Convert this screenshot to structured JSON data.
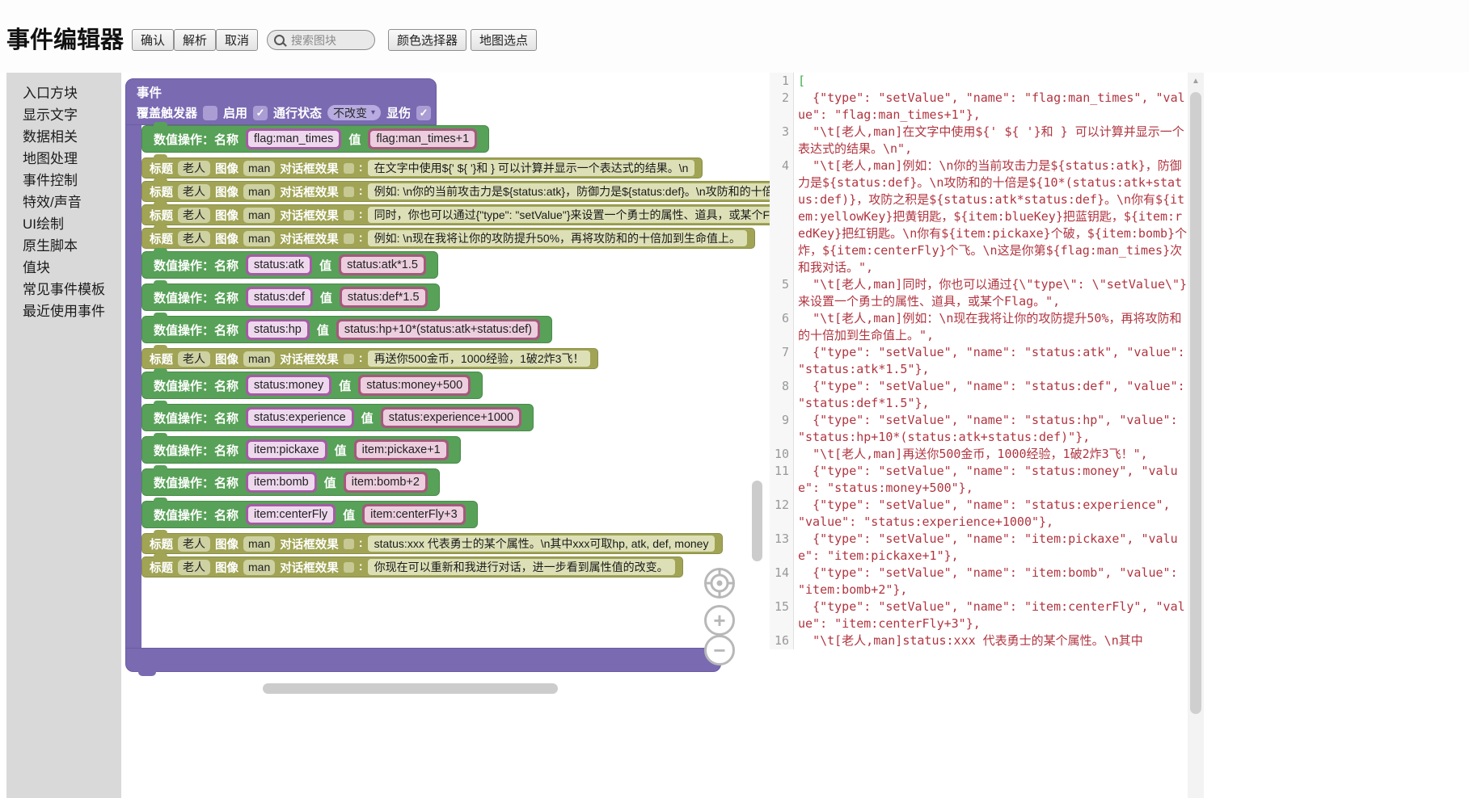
{
  "header": {
    "title": "事件编辑器",
    "confirm_label": "确认",
    "parse_label": "解析",
    "cancel_label": "取消",
    "search_placeholder": "搜索图块",
    "color_picker_label": "颜色选择器",
    "map_pick_label": "地图选点"
  },
  "sidebar": {
    "items": [
      "入口方块",
      "显示文字",
      "数据相关",
      "地图处理",
      "事件控制",
      "特效/声音",
      "UI绘制",
      "原生脚本",
      "值块",
      "常见事件模板",
      "最近使用事件"
    ]
  },
  "icons": {
    "check": "✓",
    "caret_down": "▾",
    "plus": "+",
    "minus": "−",
    "up_arrow": "▲"
  },
  "colors": {
    "block_purple": "#7a6ab2",
    "block_green": "#58a158",
    "block_olive": "#a0a454",
    "socket_magenta": "#a55ba5",
    "socket_rose": "#a5597d",
    "code_string_red": "#b03540",
    "code_bracket_green": "#3fae49"
  },
  "workspace": {
    "event_block": {
      "title": "事件",
      "trigger_label": "覆盖触发器",
      "trigger_checked": false,
      "enable_label": "启用",
      "enable_checked": true,
      "pass_label": "通行状态",
      "pass_value": "不改变",
      "damage_label": "显伤",
      "damage_checked": true
    },
    "labels": {
      "setvalue": "数值操作：名称",
      "value": "值",
      "title": "标题",
      "title_value": "老人",
      "image": "图像",
      "image_value": "man",
      "effect": "对话框效果",
      "colon": ":"
    },
    "rows": [
      {
        "kind": "setvalue",
        "name": "flag:man_times",
        "value": "flag:man_times+1"
      },
      {
        "kind": "title",
        "text": "在文字中使用${' ${ '}和 } 可以计算并显示一个表达式的结果。\\n"
      },
      {
        "kind": "title",
        "text": "例如: \\n你的当前攻击力是${status:atk}，防御力是${status:def}。\\n攻防和的十倍是${10*(status:atk+status:def)}，攻防之积是${status:atk*status:def}。"
      },
      {
        "kind": "title",
        "text": "同时，你也可以通过{\"type\": \"setValue\"}来设置一个勇士的属性、道具，或某个Flag。"
      },
      {
        "kind": "title",
        "text": "例如: \\n现在我将让你的攻防提升50%，再将攻防和的十倍加到生命值上。"
      },
      {
        "kind": "setvalue",
        "name": "status:atk",
        "value": "status:atk*1.5"
      },
      {
        "kind": "setvalue",
        "name": "status:def",
        "value": "status:def*1.5"
      },
      {
        "kind": "setvalue",
        "name": "status:hp",
        "value": "status:hp+10*(status:atk+status:def)"
      },
      {
        "kind": "title",
        "text": "再送你500金币，1000经验，1破2炸3飞！"
      },
      {
        "kind": "setvalue",
        "name": "status:money",
        "value": "status:money+500"
      },
      {
        "kind": "setvalue",
        "name": "status:experience",
        "value": "status:experience+1000"
      },
      {
        "kind": "setvalue",
        "name": "item:pickaxe",
        "value": "item:pickaxe+1"
      },
      {
        "kind": "setvalue",
        "name": "item:bomb",
        "value": "item:bomb+2"
      },
      {
        "kind": "setvalue",
        "name": "item:centerFly",
        "value": "item:centerFly+3"
      },
      {
        "kind": "title",
        "text": "status:xxx 代表勇士的某个属性。\\n其中xxx可取hp, atk, def, money"
      },
      {
        "kind": "title",
        "text": "你现在可以重新和我进行对话，进一步看到属性值的改变。"
      }
    ]
  },
  "editor": {
    "lines": [
      {
        "no": "1",
        "text": "[",
        "green": true
      },
      {
        "no": "2",
        "text": "  {\"type\": \"setValue\", \"name\": \"flag:man_times\", \"value\": \"flag:man_times+1\"},"
      },
      {
        "no": "3",
        "text": "  \"\\t[老人,man]在文字中使用${' ${ '}和 } 可以计算并显示一个表达式的结果。\\n\","
      },
      {
        "no": "4",
        "text": "  \"\\t[老人,man]例如：\\n你的当前攻击力是${status:atk}，防御力是${status:def}。\\n攻防和的十倍是${10*(status:atk+status:def)}，攻防之积是${status:atk*status:def}。\\n你有${item:yellowKey}把黄钥匙，${item:blueKey}把蓝钥匙，${item:redKey}把红钥匙。\\n你有${item:pickaxe}个破，${item:bomb}个炸，${item:centerFly}个飞。\\n这是你第${flag:man_times}次和我对话。\","
      },
      {
        "no": "5",
        "text": "  \"\\t[老人,man]同时，你也可以通过{\\\"type\\\": \\\"setValue\\\"}来设置一个勇士的属性、道具，或某个Flag。\","
      },
      {
        "no": "6",
        "text": "  \"\\t[老人,man]例如：\\n现在我将让你的攻防提升50%，再将攻防和的十倍加到生命值上。\","
      },
      {
        "no": "7",
        "text": "  {\"type\": \"setValue\", \"name\": \"status:atk\", \"value\": \"status:atk*1.5\"},"
      },
      {
        "no": "8",
        "text": "  {\"type\": \"setValue\", \"name\": \"status:def\", \"value\": \"status:def*1.5\"},"
      },
      {
        "no": "9",
        "text": "  {\"type\": \"setValue\", \"name\": \"status:hp\", \"value\": \"status:hp+10*(status:atk+status:def)\"},"
      },
      {
        "no": "10",
        "text": "  \"\\t[老人,man]再送你500金币，1000经验，1破2炸3飞！\","
      },
      {
        "no": "11",
        "text": "  {\"type\": \"setValue\", \"name\": \"status:money\", \"value\": \"status:money+500\"},"
      },
      {
        "no": "12",
        "text": "  {\"type\": \"setValue\", \"name\": \"status:experience\", \"value\": \"status:experience+1000\"},"
      },
      {
        "no": "13",
        "text": "  {\"type\": \"setValue\", \"name\": \"item:pickaxe\", \"value\": \"item:pickaxe+1\"},"
      },
      {
        "no": "14",
        "text": "  {\"type\": \"setValue\", \"name\": \"item:bomb\", \"value\": \"item:bomb+2\"},"
      },
      {
        "no": "15",
        "text": "  {\"type\": \"setValue\", \"name\": \"item:centerFly\", \"value\": \"item:centerFly+3\"},"
      },
      {
        "no": "16",
        "text": "  \"\\t[老人,man]status:xxx 代表勇士的某个属性。\\n其中"
      }
    ]
  }
}
